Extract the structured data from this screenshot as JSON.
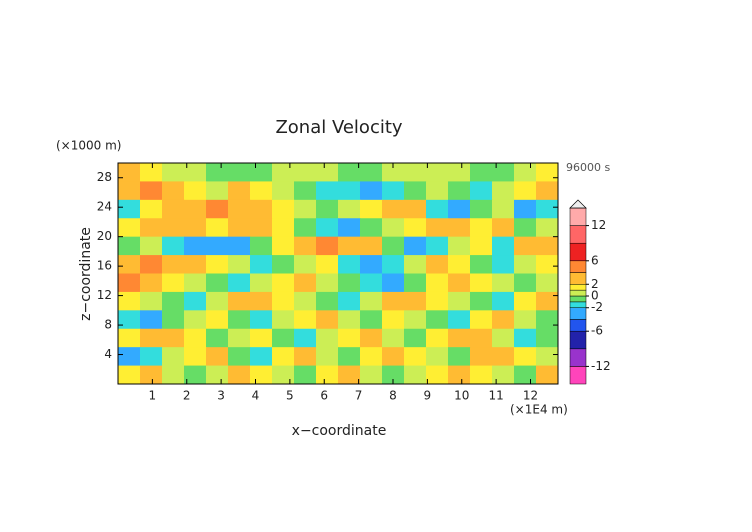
{
  "chart_data": {
    "type": "contour",
    "title": "Zonal Velocity",
    "x_label": "x−coordinate",
    "y_label": "z−coordinate",
    "x_unit": "(×1E4 m)",
    "y_unit": "(×1000 m)",
    "time_label": "96000 s",
    "xlim": [
      0,
      12.8
    ],
    "ylim": [
      0,
      30
    ],
    "xticks": [
      1,
      2,
      3,
      4,
      5,
      6,
      7,
      8,
      9,
      10,
      11,
      12
    ],
    "yticks": [
      4,
      8,
      12,
      16,
      20,
      24,
      28
    ],
    "x": [
      0.32,
      0.96,
      1.6,
      2.24,
      2.88,
      3.52,
      4.16,
      4.8,
      5.44,
      6.08,
      6.72,
      7.36,
      8,
      8.64,
      9.28,
      9.92,
      10.56,
      11.2,
      11.84,
      12.48
    ],
    "z": [
      28.75,
      26.25,
      23.75,
      21.25,
      18.75,
      16.25,
      13.75,
      11.25,
      8.75,
      6.25,
      3.75,
      1.25
    ],
    "values": [
      [
        2,
        1,
        0,
        0,
        -1,
        -1,
        -1,
        0,
        0,
        0,
        -1,
        -1,
        0,
        0,
        0,
        0,
        -1,
        -1,
        0,
        1
      ],
      [
        3,
        4,
        3,
        1,
        0,
        2,
        1,
        0,
        -1,
        -2,
        -2,
        -3,
        -2,
        -1,
        0,
        -1,
        -2,
        0,
        1,
        2
      ],
      [
        -2,
        1,
        2,
        3,
        4,
        3,
        2,
        1,
        0,
        -1,
        0,
        1,
        2,
        3,
        -2,
        -3,
        -1,
        0,
        -3,
        -2
      ],
      [
        1,
        2,
        3,
        2,
        1,
        2,
        3,
        1,
        -1,
        -2,
        -3,
        -1,
        0,
        1,
        3,
        2,
        1,
        2,
        -1,
        0
      ],
      [
        -1,
        0,
        -2,
        -3,
        -4,
        -3,
        -1,
        1,
        2,
        4,
        3,
        2,
        -1,
        -3,
        -2,
        0,
        1,
        -2,
        3,
        2
      ],
      [
        3,
        4,
        2,
        3,
        1,
        0,
        -2,
        -1,
        0,
        1,
        -2,
        -4,
        -2,
        0,
        2,
        1,
        -1,
        -2,
        0,
        1
      ],
      [
        4,
        3,
        1,
        0,
        -1,
        -2,
        0,
        1,
        2,
        0,
        -1,
        -2,
        -3,
        -1,
        1,
        2,
        1,
        0,
        -1,
        0
      ],
      [
        1,
        0,
        -1,
        -2,
        0,
        2,
        3,
        1,
        0,
        -1,
        -2,
        0,
        2,
        3,
        1,
        0,
        -1,
        -2,
        1,
        2
      ],
      [
        -2,
        -3,
        -1,
        0,
        1,
        -1,
        -2,
        0,
        1,
        2,
        0,
        -1,
        1,
        0,
        -1,
        -2,
        1,
        2,
        0,
        -1
      ],
      [
        1,
        2,
        3,
        1,
        -1,
        0,
        1,
        -1,
        -2,
        0,
        1,
        2,
        0,
        -1,
        1,
        3,
        2,
        0,
        -2,
        -1
      ],
      [
        -3,
        -2,
        0,
        1,
        2,
        -1,
        -2,
        1,
        2,
        0,
        -1,
        1,
        2,
        1,
        0,
        -1,
        2,
        3,
        1,
        0
      ],
      [
        1,
        2,
        0,
        -1,
        0,
        2,
        1,
        0,
        -1,
        1,
        2,
        0,
        -1,
        0,
        1,
        2,
        1,
        0,
        -1,
        2
      ]
    ],
    "colorbar": {
      "lim": [
        -15,
        15
      ],
      "ticks": [
        -12,
        -6,
        -2,
        0,
        2,
        6,
        12
      ],
      "levels": [
        -15,
        -12,
        -9,
        -6,
        -4,
        -2,
        -1,
        0,
        1,
        2,
        4,
        6,
        9,
        12,
        15
      ],
      "colors": [
        "#ff44bb",
        "#9933cc",
        "#2222aa",
        "#2255ee",
        "#33aaff",
        "#33dddd",
        "#66dd66",
        "#ccee55",
        "#ffee33",
        "#ffbb33",
        "#ff8833",
        "#ee2222",
        "#ff6666",
        "#ffaaaa"
      ]
    }
  }
}
